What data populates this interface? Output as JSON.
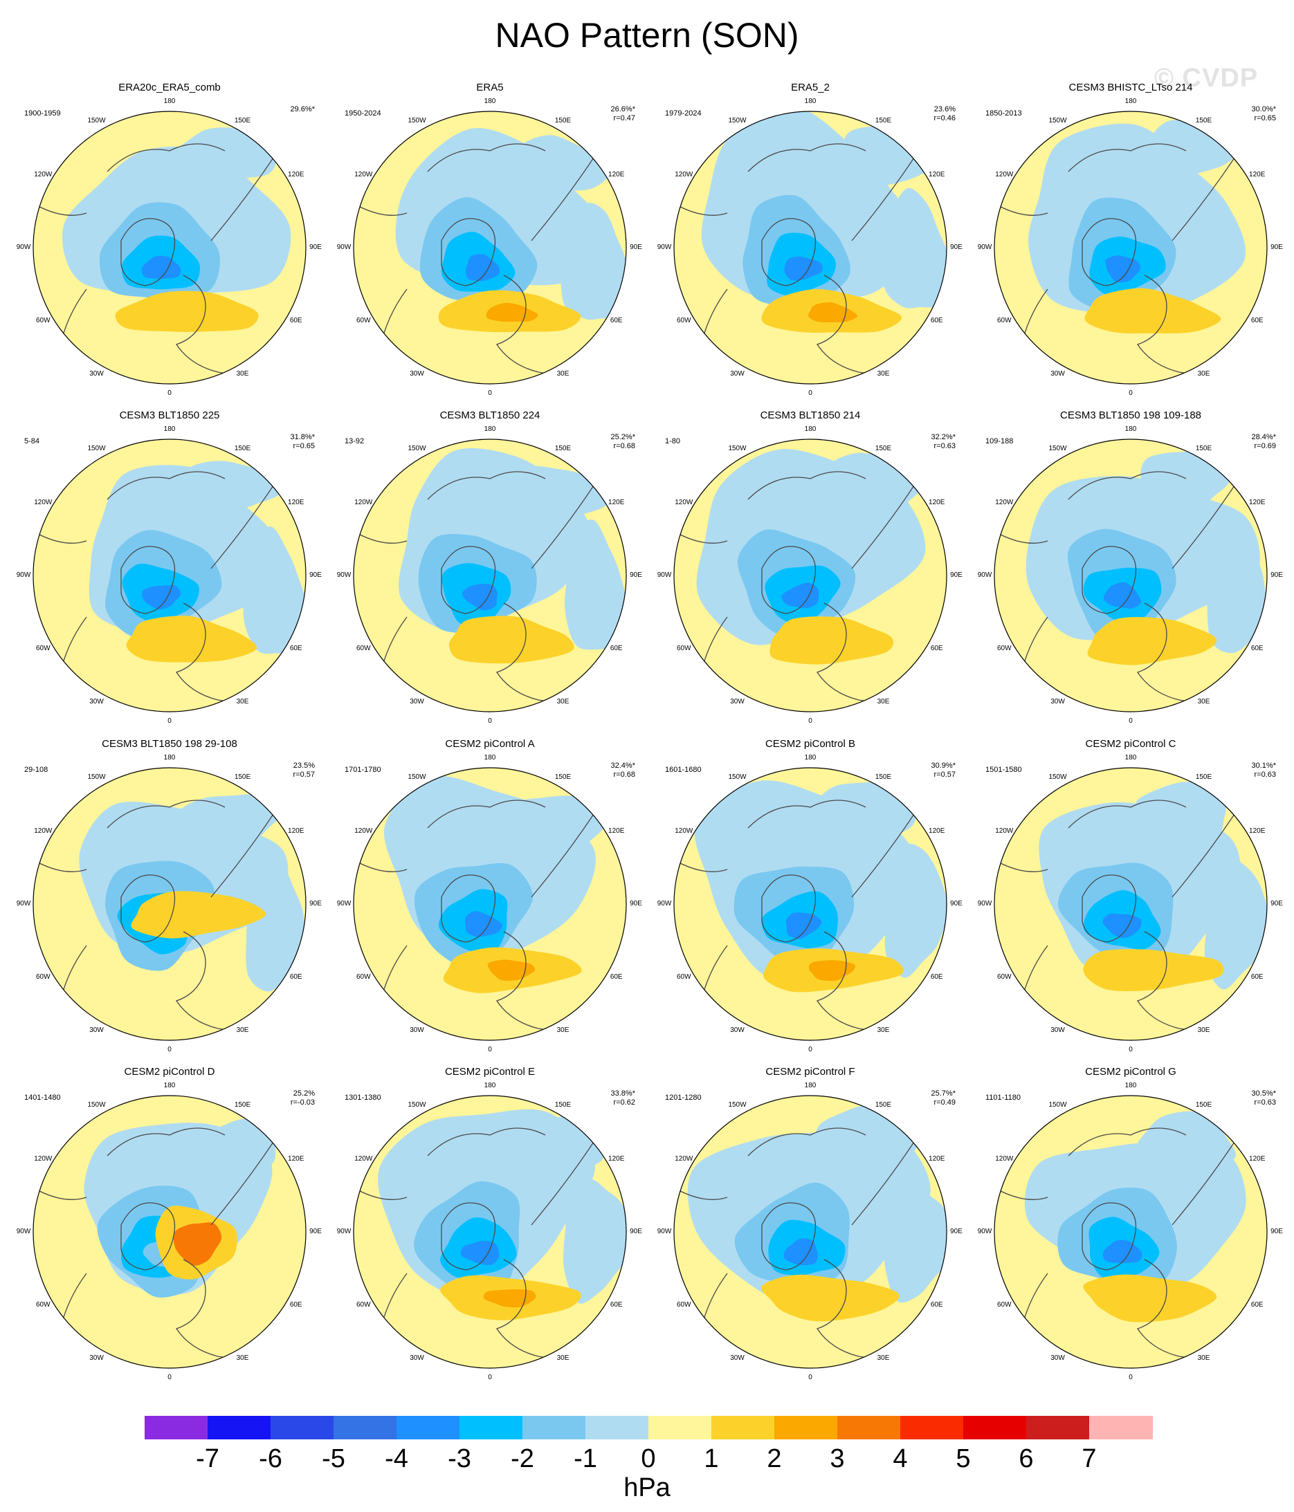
{
  "title": "NAO Pattern (SON)",
  "watermark": "© CVDP",
  "unit": "hPa",
  "lon_labels": [
    "180",
    "150E",
    "120E",
    "90E",
    "60E",
    "30E",
    "0",
    "30W",
    "60W",
    "90W",
    "120W",
    "150W"
  ],
  "colors": {
    "land_outline": "#4a4a4a",
    "border": "#000000"
  },
  "colorbar": {
    "colors": [
      "#8a2be2",
      "#1414f5",
      "#2a48e8",
      "#3473e6",
      "#1e90ff",
      "#00bfff",
      "#7ac8f0",
      "#b0dcf2",
      "#fff59a",
      "#fcd22a",
      "#fba800",
      "#f87806",
      "#fb2b00",
      "#e60000",
      "#cd1e1e",
      "#ffb4b4"
    ],
    "labels": [
      "-7",
      "-6",
      "-5",
      "-4",
      "-3",
      "-2",
      "-1",
      "0",
      "1",
      "2",
      "3",
      "4",
      "5",
      "6",
      "7"
    ]
  },
  "panels": [
    {
      "title": "ERA20c_ERA5_comb",
      "years": "1900-1959",
      "pct": "29.6%*",
      "r": "",
      "low": "#1e90ff",
      "high": "#fcd22a",
      "variant": 0
    },
    {
      "title": "ERA5",
      "years": "1950-2024",
      "pct": "26.6%*",
      "r": "r=0.47",
      "low": "#1e90ff",
      "high": "#fba800",
      "variant": 1
    },
    {
      "title": "ERA5_2",
      "years": "1979-2024",
      "pct": "23.6%",
      "r": "r=0.46",
      "low": "#1e90ff",
      "high": "#fba800",
      "variant": 2
    },
    {
      "title": "CESM3 BHISTC_LTso 214",
      "years": "1850-2013",
      "pct": "30.0%*",
      "r": "r=0.65",
      "low": "#1e90ff",
      "high": "#fcd22a",
      "variant": 3
    },
    {
      "title": "CESM3 BLT1850 225",
      "years": "5-84",
      "pct": "31.8%*",
      "r": "r=0.65",
      "low": "#1e90ff",
      "high": "#fcd22a",
      "variant": 4
    },
    {
      "title": "CESM3 BLT1850 224",
      "years": "13-92",
      "pct": "25.2%*",
      "r": "r=0.68",
      "low": "#1e90ff",
      "high": "#fcd22a",
      "variant": 5
    },
    {
      "title": "CESM3 BLT1850 214",
      "years": "1-80",
      "pct": "32.2%*",
      "r": "r=0.63",
      "low": "#1e90ff",
      "high": "#fcd22a",
      "variant": 6
    },
    {
      "title": "CESM3 BLT1850 198 109-188",
      "years": "109-188",
      "pct": "28.4%*",
      "r": "r=0.69",
      "low": "#1e90ff",
      "high": "#fcd22a",
      "variant": 7
    },
    {
      "title": "CESM3 BLT1850 198 29-108",
      "years": "29-108",
      "pct": "23.5%",
      "r": "r=0.57",
      "low": "#00bfff",
      "high": "#fcd22a",
      "variant": 8
    },
    {
      "title": "CESM2 piControl A",
      "years": "1701-1780",
      "pct": "32.4%*",
      "r": "r=0.68",
      "low": "#1e90ff",
      "high": "#fba800",
      "variant": 9
    },
    {
      "title": "CESM2 piControl B",
      "years": "1601-1680",
      "pct": "30.9%*",
      "r": "r=0.57",
      "low": "#1e90ff",
      "high": "#fba800",
      "variant": 10
    },
    {
      "title": "CESM2 piControl C",
      "years": "1501-1580",
      "pct": "30.1%*",
      "r": "r=0.63",
      "low": "#1e90ff",
      "high": "#fcd22a",
      "variant": 11
    },
    {
      "title": "CESM2 piControl D",
      "years": "1401-1480",
      "pct": "25.2%",
      "r": "r=-0.03",
      "low": "#7ac8f0",
      "high": "#f87806",
      "variant": 12
    },
    {
      "title": "CESM2 piControl E",
      "years": "1301-1380",
      "pct": "33.8%*",
      "r": "r=0.62",
      "low": "#1e90ff",
      "high": "#fba800",
      "variant": 13
    },
    {
      "title": "CESM2 piControl F",
      "years": "1201-1280",
      "pct": "25.7%*",
      "r": "r=0.49",
      "low": "#1e90ff",
      "high": "#fcd22a",
      "variant": 14
    },
    {
      "title": "CESM2 piControl G",
      "years": "1101-1180",
      "pct": "30.5%*",
      "r": "r=0.63",
      "low": "#1e90ff",
      "high": "#fcd22a",
      "variant": 15
    }
  ]
}
